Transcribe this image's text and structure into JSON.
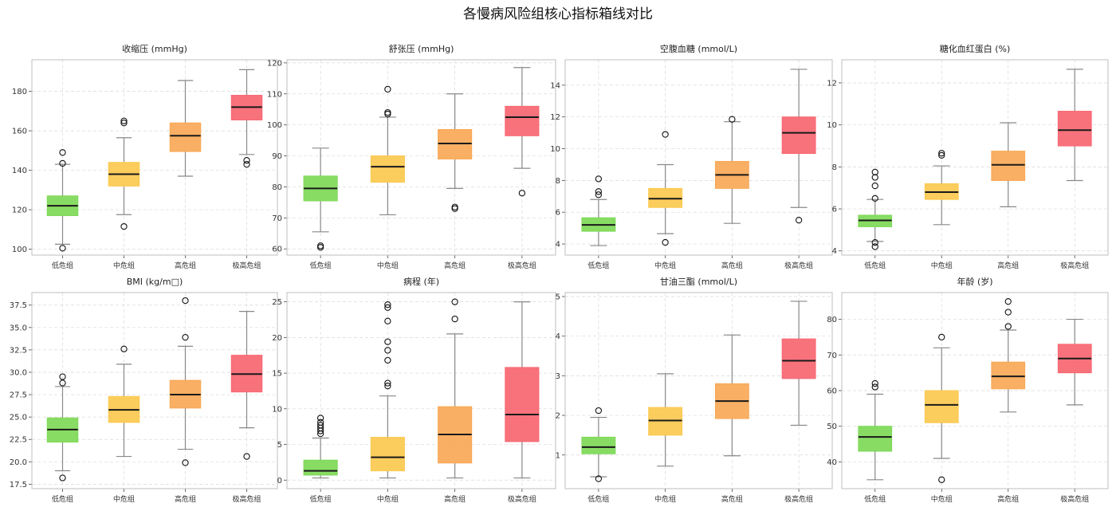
{
  "figure_title": "各慢病风险组核心指标箱线对比",
  "group_colors": [
    "#7ed957",
    "#fbc94f",
    "#f8a857",
    "#f76671"
  ],
  "chart_data": [
    {
      "type": "box",
      "title": "收缩压 (mmHg)",
      "categories": [
        "低危组",
        "中危组",
        "高危组",
        "极高危组"
      ],
      "ylim": [
        97,
        196
      ],
      "yticks": [
        100,
        120,
        140,
        160,
        180
      ],
      "grid": true,
      "boxes": [
        {
          "whislo": 102.5,
          "q1": 117,
          "med": 122,
          "q3": 127,
          "whishi": 143,
          "fliers": [
            149,
            143.5,
            100.5
          ]
        },
        {
          "whislo": 117.5,
          "q1": 132,
          "med": 138,
          "q3": 144,
          "whishi": 156.5,
          "fliers": [
            165,
            164,
            111.5
          ]
        },
        {
          "whislo": 137,
          "q1": 149.5,
          "med": 157.5,
          "q3": 164,
          "whishi": 185.5,
          "fliers": []
        },
        {
          "whislo": 148,
          "q1": 165.5,
          "med": 172,
          "q3": 178,
          "whishi": 191,
          "fliers": [
            145,
            143
          ]
        }
      ]
    },
    {
      "type": "box",
      "title": "舒张压 (mmHg)",
      "categories": [
        "低危组",
        "中危组",
        "高危组",
        "极高危组"
      ],
      "ylim": [
        58,
        121
      ],
      "yticks": [
        60,
        70,
        80,
        90,
        100,
        110,
        120
      ],
      "grid": true,
      "boxes": [
        {
          "whislo": 65.5,
          "q1": 75.5,
          "med": 79.5,
          "q3": 83.5,
          "whishi": 92.5,
          "fliers": [
            61,
            60.5
          ]
        },
        {
          "whislo": 71,
          "q1": 81.5,
          "med": 86.5,
          "q3": 90,
          "whishi": 102.5,
          "fliers": [
            111.5,
            104,
            103.5
          ]
        },
        {
          "whislo": 79.5,
          "q1": 89,
          "med": 94,
          "q3": 98.5,
          "whishi": 110,
          "fliers": [
            73.5,
            73
          ]
        },
        {
          "whislo": 86,
          "q1": 96.5,
          "med": 102.5,
          "q3": 106,
          "whishi": 118.5,
          "fliers": [
            78
          ]
        }
      ]
    },
    {
      "type": "box",
      "title": "空腹血糖 (mmol/L)",
      "categories": [
        "低危组",
        "中危组",
        "高危组",
        "极高危组"
      ],
      "ylim": [
        3.3,
        15.6
      ],
      "yticks": [
        4,
        6,
        8,
        10,
        12,
        14
      ],
      "grid": true,
      "boxes": [
        {
          "whislo": 3.9,
          "q1": 4.8,
          "med": 5.2,
          "q3": 5.65,
          "whishi": 6.8,
          "fliers": [
            8.1,
            7.3,
            7.1
          ]
        },
        {
          "whislo": 4.65,
          "q1": 6.3,
          "med": 6.85,
          "q3": 7.5,
          "whishi": 9.0,
          "fliers": [
            10.9,
            4.1
          ]
        },
        {
          "whislo": 5.3,
          "q1": 7.5,
          "med": 8.35,
          "q3": 9.2,
          "whishi": 11.7,
          "fliers": [
            11.85
          ]
        },
        {
          "whislo": 6.3,
          "q1": 9.7,
          "med": 11.0,
          "q3": 12.0,
          "whishi": 15.0,
          "fliers": [
            5.5
          ]
        }
      ]
    },
    {
      "type": "box",
      "title": "糖化血红蛋白 (%)",
      "categories": [
        "低危组",
        "中危组",
        "高危组",
        "极高危组"
      ],
      "ylim": [
        3.8,
        13.1
      ],
      "yticks": [
        4,
        6,
        8,
        10,
        12
      ],
      "grid": true,
      "boxes": [
        {
          "whislo": 4.45,
          "q1": 5.15,
          "med": 5.45,
          "q3": 5.7,
          "whishi": 6.45,
          "fliers": [
            7.75,
            7.5,
            7.1,
            6.5,
            4.4,
            4.2
          ]
        },
        {
          "whislo": 5.25,
          "q1": 6.45,
          "med": 6.8,
          "q3": 7.2,
          "whishi": 8.05,
          "fliers": [
            8.65,
            8.55
          ]
        },
        {
          "whislo": 6.1,
          "q1": 7.35,
          "med": 8.1,
          "q3": 8.75,
          "whishi": 10.1,
          "fliers": []
        },
        {
          "whislo": 7.35,
          "q1": 9.0,
          "med": 9.75,
          "q3": 10.65,
          "whishi": 12.65,
          "fliers": []
        }
      ]
    },
    {
      "type": "box",
      "title": "BMI (kg/m□)",
      "categories": [
        "低危组",
        "中危组",
        "高危组",
        "极高危组"
      ],
      "ylim": [
        17.0,
        38.9
      ],
      "yticks": [
        17.5,
        20.0,
        22.5,
        25.0,
        27.5,
        30.0,
        32.5,
        35.0,
        37.5
      ],
      "ytick_labels": [
        "17.5",
        "20.0",
        "22.5",
        "25.0",
        "27.5",
        "30.0",
        "32.5",
        "35.0",
        "37.5"
      ],
      "grid": true,
      "boxes": [
        {
          "whislo": 19.0,
          "q1": 22.2,
          "med": 23.6,
          "q3": 24.9,
          "whishi": 28.4,
          "fliers": [
            29.5,
            28.8,
            18.2
          ]
        },
        {
          "whislo": 20.6,
          "q1": 24.4,
          "med": 25.8,
          "q3": 27.3,
          "whishi": 30.9,
          "fliers": [
            32.6
          ]
        },
        {
          "whislo": 21.4,
          "q1": 26.0,
          "med": 27.5,
          "q3": 29.1,
          "whishi": 32.9,
          "fliers": [
            38.0,
            33.9,
            19.9
          ]
        },
        {
          "whislo": 23.8,
          "q1": 27.8,
          "med": 29.8,
          "q3": 31.9,
          "whishi": 36.8,
          "fliers": [
            20.6
          ]
        }
      ]
    },
    {
      "type": "box",
      "title": "病程 (年)",
      "categories": [
        "低危组",
        "中危组",
        "高危组",
        "极高危组"
      ],
      "ylim": [
        -1.2,
        26.3
      ],
      "yticks": [
        0,
        5,
        10,
        15,
        20,
        25
      ],
      "grid": true,
      "boxes": [
        {
          "whislo": 0.3,
          "q1": 0.7,
          "med": 1.3,
          "q3": 2.8,
          "whishi": 5.9,
          "fliers": [
            8.7,
            8.1,
            7.7,
            7.3,
            6.9,
            6.5
          ]
        },
        {
          "whislo": 0.3,
          "q1": 1.3,
          "med": 3.2,
          "q3": 6.0,
          "whishi": 11.8,
          "fliers": [
            24.6,
            24.2,
            22.3,
            19.4,
            18.2,
            16.8,
            13.6,
            13.2
          ]
        },
        {
          "whislo": 0.3,
          "q1": 2.4,
          "med": 6.4,
          "q3": 10.3,
          "whishi": 20.5,
          "fliers": [
            25.0,
            22.6
          ]
        },
        {
          "whislo": 0.3,
          "q1": 5.4,
          "med": 9.2,
          "q3": 15.8,
          "whishi": 25.0,
          "fliers": []
        }
      ]
    },
    {
      "type": "box",
      "title": "甘油三酯 (mmol/L)",
      "categories": [
        "低危组",
        "中危组",
        "高危组",
        "极高危组"
      ],
      "ylim": [
        0.15,
        5.1
      ],
      "yticks": [
        1,
        2,
        3,
        4,
        5
      ],
      "grid": true,
      "boxes": [
        {
          "whislo": 0.45,
          "q1": 1.03,
          "med": 1.2,
          "q3": 1.45,
          "whishi": 1.95,
          "fliers": [
            2.12,
            0.4
          ]
        },
        {
          "whislo": 0.72,
          "q1": 1.5,
          "med": 1.87,
          "q3": 2.2,
          "whishi": 3.05,
          "fliers": []
        },
        {
          "whislo": 0.98,
          "q1": 1.92,
          "med": 2.36,
          "q3": 2.8,
          "whishi": 4.03,
          "fliers": []
        },
        {
          "whislo": 1.75,
          "q1": 2.93,
          "med": 3.38,
          "q3": 3.93,
          "whishi": 4.88,
          "fliers": []
        }
      ]
    },
    {
      "type": "box",
      "title": "年龄 (岁)",
      "categories": [
        "低危组",
        "中危组",
        "高危组",
        "极高危组"
      ],
      "ylim": [
        32.5,
        87.5
      ],
      "yticks": [
        40,
        50,
        60,
        70,
        80
      ],
      "grid": true,
      "boxes": [
        {
          "whislo": 35,
          "q1": 43,
          "med": 47,
          "q3": 50,
          "whishi": 59,
          "fliers": [
            62,
            61
          ]
        },
        {
          "whislo": 41,
          "q1": 51,
          "med": 56,
          "q3": 60,
          "whishi": 72,
          "fliers": [
            75,
            35
          ]
        },
        {
          "whislo": 54,
          "q1": 60.5,
          "med": 64,
          "q3": 68,
          "whishi": 77,
          "fliers": [
            85,
            82,
            78
          ]
        },
        {
          "whislo": 56,
          "q1": 65,
          "med": 69,
          "q3": 73,
          "whishi": 80,
          "fliers": []
        }
      ]
    }
  ]
}
